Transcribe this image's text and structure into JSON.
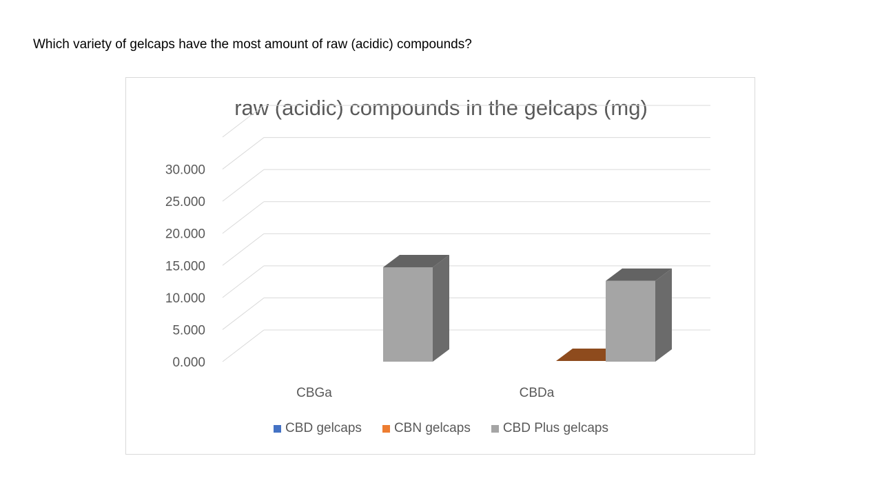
{
  "question": "Which variety of gelcaps have the most amount of raw (acidic) compounds?",
  "chart_data": {
    "type": "bar",
    "title": "raw (acidic) compounds in the gelcaps (mg)",
    "categories": [
      "CBGa",
      "CBDa"
    ],
    "series": [
      {
        "name": "CBD gelcaps",
        "values": [
          0,
          0
        ],
        "color": "#4472c4"
      },
      {
        "name": "CBN gelcaps",
        "values": [
          0,
          0.1
        ],
        "color": "#ed7d31"
      },
      {
        "name": "CBD Plus gelcaps",
        "values": [
          13.9,
          11.9
        ],
        "color": "#a5a5a5"
      }
    ],
    "yticks": [
      "0.000",
      "5.000",
      "10.000",
      "15.000",
      "20.000",
      "25.000",
      "30.000"
    ],
    "ylim": [
      0,
      35
    ],
    "legend_position": "bottom",
    "grid": true
  }
}
